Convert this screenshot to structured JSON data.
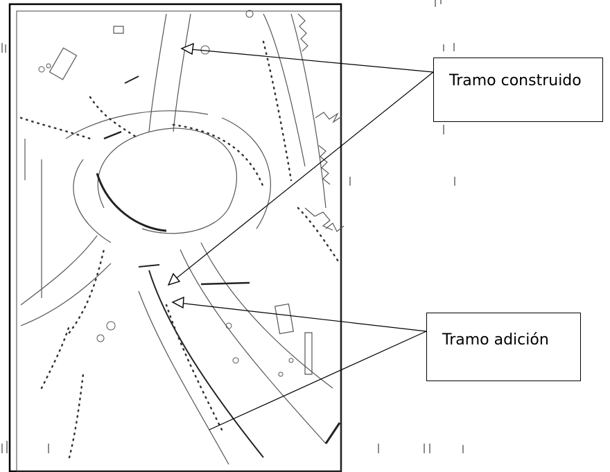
{
  "labels": {
    "construido": "Tramo construido",
    "adicion": "Tramo adición"
  },
  "colors": {
    "line": "#000000",
    "plan": "#555555",
    "background": "#ffffff"
  }
}
